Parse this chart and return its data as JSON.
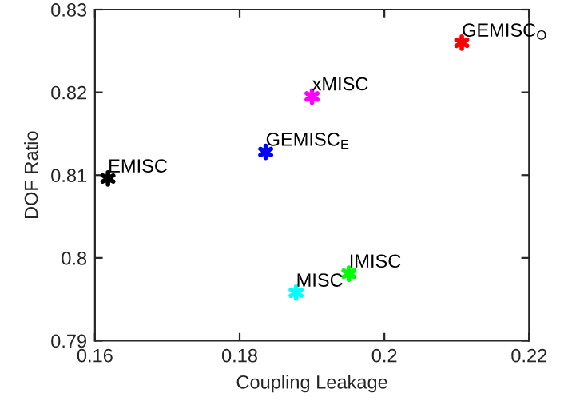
{
  "chart_data": {
    "type": "scatter",
    "xlabel": "Coupling Leakage",
    "ylabel": "DOF Ratio",
    "xlim": [
      0.16,
      0.22
    ],
    "xticks": [
      0.16,
      0.18,
      {
        "value": 0.2,
        "label": "0.2"
      },
      0.22
    ],
    "ylim": [
      0.79,
      0.83
    ],
    "yticks": [
      0.79,
      {
        "value": 0.8,
        "label": "0.8"
      },
      0.81,
      0.82,
      0.83
    ],
    "grid": false,
    "legend": false,
    "marker": "cross",
    "series": [
      {
        "name": "EMISC",
        "color": "#000000",
        "x": [
          0.1618
        ],
        "values": [
          0.8096
        ]
      },
      {
        "name": "GEMISC$_{E}$",
        "color": "#0000ff",
        "x": [
          0.1836
        ],
        "values": [
          0.8128
        ]
      },
      {
        "name": "xMISC",
        "color": "#ff00ff",
        "x": [
          0.19
        ],
        "values": [
          0.8195
        ]
      },
      {
        "name": "GEMISC$_{O}$",
        "color": "#ff0000",
        "x": [
          0.2107
        ],
        "values": [
          0.826
        ]
      },
      {
        "name": "IMISC",
        "color": "#00ff00",
        "x": [
          0.1951
        ],
        "values": [
          0.7981
        ]
      },
      {
        "name": "MISC",
        "color": "#00ffff",
        "x": [
          0.1878
        ],
        "values": [
          0.7958
        ]
      }
    ]
  }
}
